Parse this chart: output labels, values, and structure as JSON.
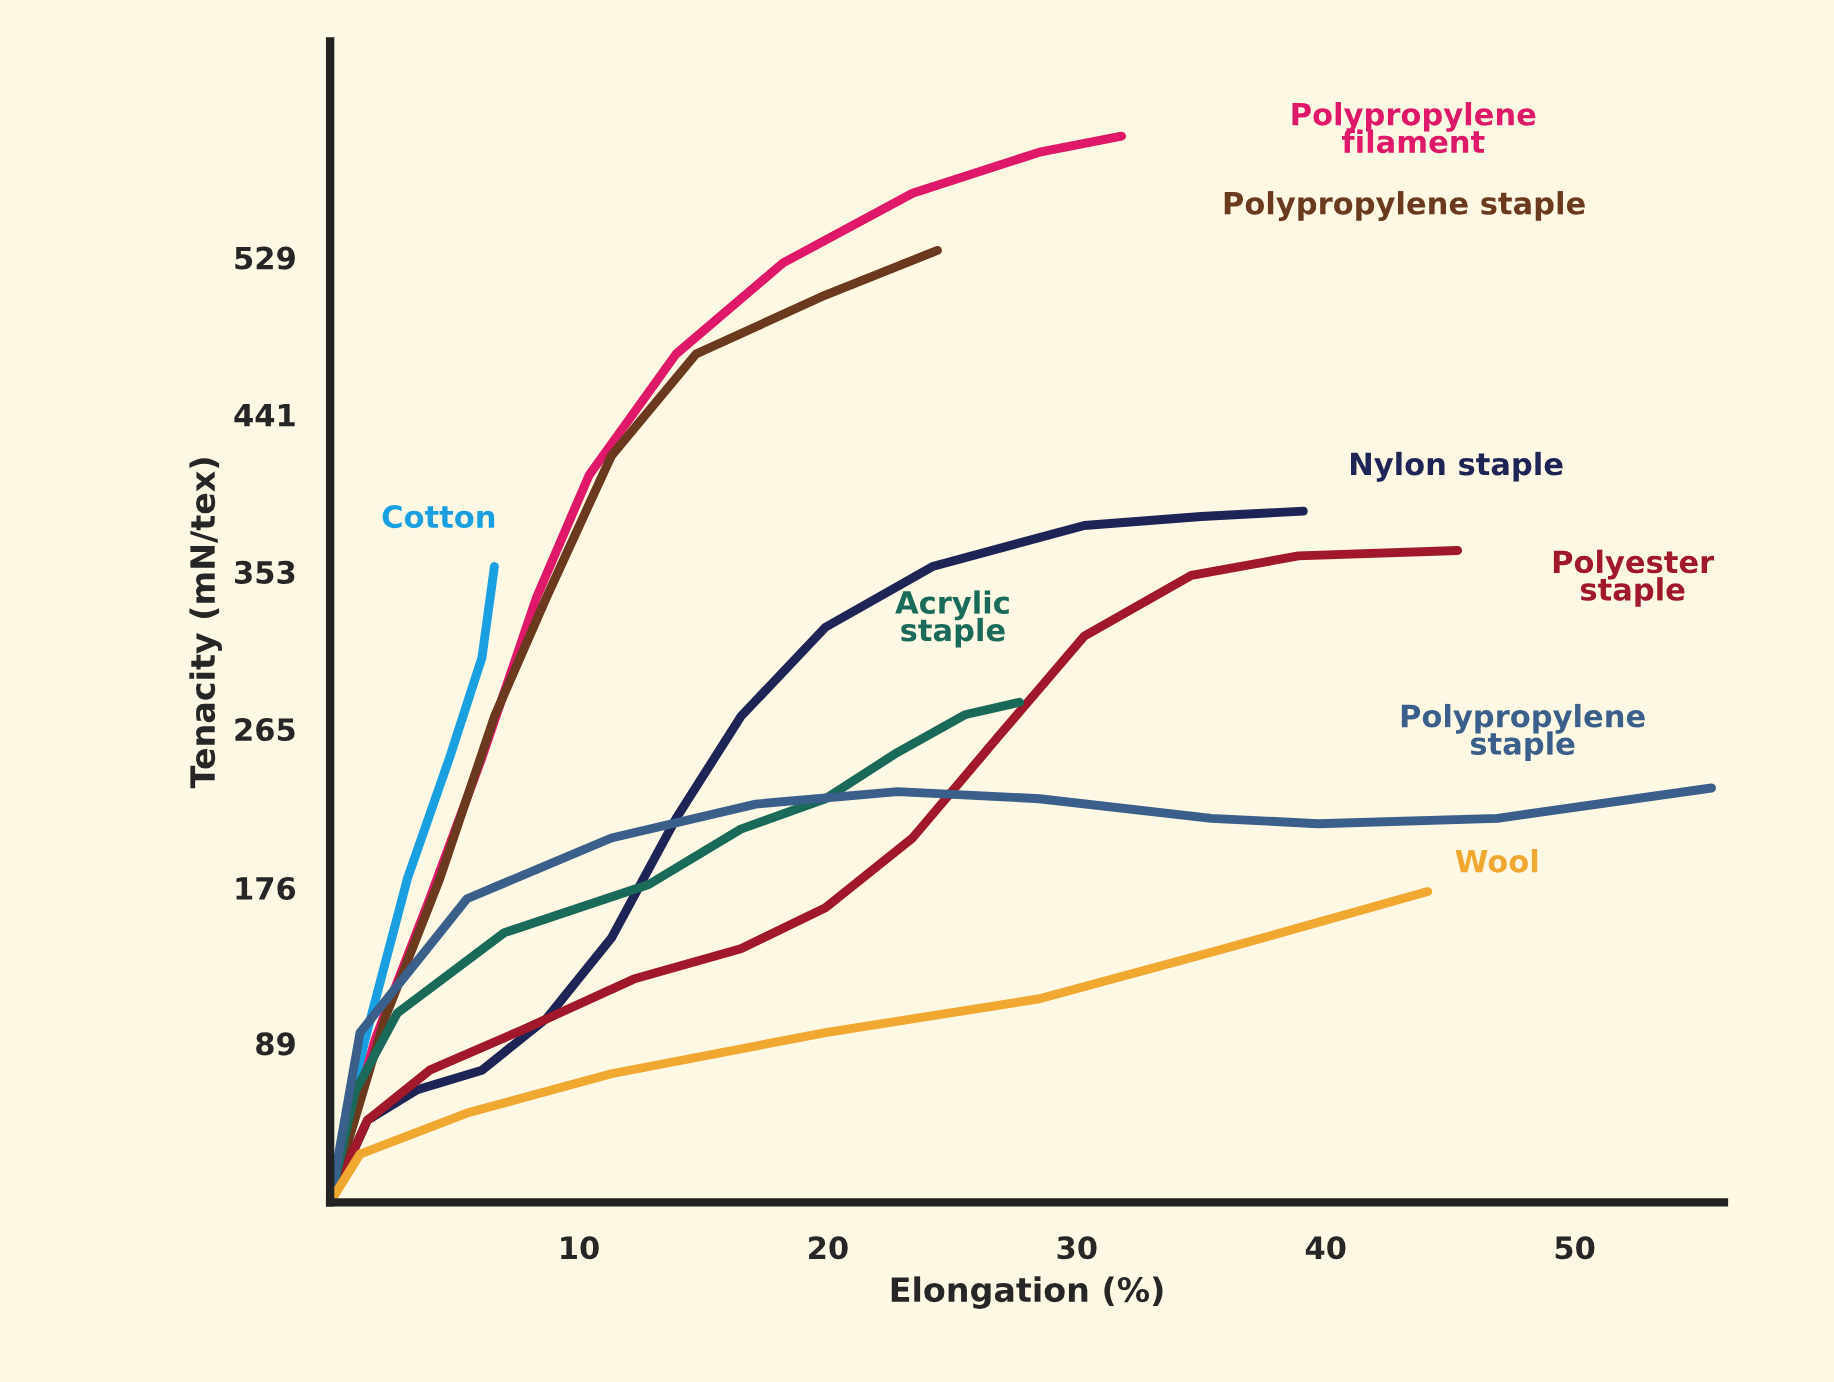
{
  "chart_data": {
    "type": "line",
    "xlabel": "Elongation (%)",
    "ylabel": "Tenacity (mN/tex)",
    "xlim": [
      0,
      56
    ],
    "ylim": [
      0,
      650
    ],
    "xticks": [
      10,
      20,
      30,
      40,
      50
    ],
    "yticks": [
      89,
      176,
      265,
      353,
      441,
      529
    ],
    "grid": false,
    "legend": false,
    "marker": "none",
    "line_style": "solid",
    "series": [
      {
        "name": "Cotton",
        "color": "#1aa0e0",
        "x": [
          0,
          1.4,
          3.1,
          4.8,
          6.1,
          6.6
        ],
        "values": [
          0,
          91,
          181,
          249,
          305,
          356
        ]
      },
      {
        "name": "Polypropylene\nfilament",
        "color": "#e0186a",
        "x": [
          0,
          1.8,
          4.0,
          6.1,
          8.3,
          10.4,
          13.9,
          18.2,
          23.4,
          28.5,
          31.8
        ],
        "values": [
          0,
          91,
          170,
          249,
          339,
          407,
          475,
          526,
          565,
          588,
          597
        ]
      },
      {
        "name": "Polypropylene staple",
        "color": "#6b3a1e",
        "x": [
          0,
          2.2,
          4.4,
          6.6,
          8.7,
          11.3,
          14.7,
          19.9,
          24.4
        ],
        "values": [
          0,
          103,
          181,
          272,
          339,
          418,
          475,
          508,
          533
        ]
      },
      {
        "name": "Nylon staple",
        "color": "#1e2456",
        "x": [
          0,
          1.5,
          3.5,
          6.1,
          8.7,
          11.3,
          13.9,
          16.5,
          19.9,
          24.2,
          30.3,
          35.0,
          39.1
        ],
        "values": [
          0,
          46,
          63,
          74,
          103,
          148,
          215,
          272,
          322,
          356,
          379,
          384,
          387
        ]
      },
      {
        "name": "Polyester\nstaple",
        "color": "#a0182a",
        "x": [
          0,
          1.5,
          4.0,
          7.8,
          12.2,
          16.5,
          19.9,
          23.4,
          26.8,
          30.3,
          34.6,
          38.9,
          45.3
        ],
        "values": [
          0,
          46,
          74,
          97,
          125,
          142,
          165,
          204,
          260,
          317,
          351,
          362,
          365
        ]
      },
      {
        "name": "Acrylic\nstaple",
        "color": "#1a6a5a",
        "x": [
          0,
          1.0,
          2.7,
          7.0,
          12.8,
          16.5,
          19.9,
          22.8,
          25.5,
          27.7
        ],
        "values": [
          0,
          62,
          106,
          151,
          178,
          209,
          226,
          252,
          273,
          280
        ]
      },
      {
        "name": "Polypropylene\nstaple",
        "color": "#3a5f8a",
        "x": [
          0,
          1.2,
          5.5,
          11.3,
          17.1,
          22.8,
          28.5,
          35.4,
          39.7,
          46.9,
          55.5
        ],
        "values": [
          0,
          95,
          170,
          204,
          223,
          230,
          226,
          215,
          212,
          215,
          232
        ]
      },
      {
        "name": "Wool",
        "color": "#f0a830",
        "x": [
          0,
          1.2,
          5.5,
          11.3,
          19.9,
          28.5,
          35.4,
          44.1
        ],
        "values": [
          0,
          27,
          50,
          72,
          95,
          114,
          140,
          174
        ]
      }
    ]
  }
}
